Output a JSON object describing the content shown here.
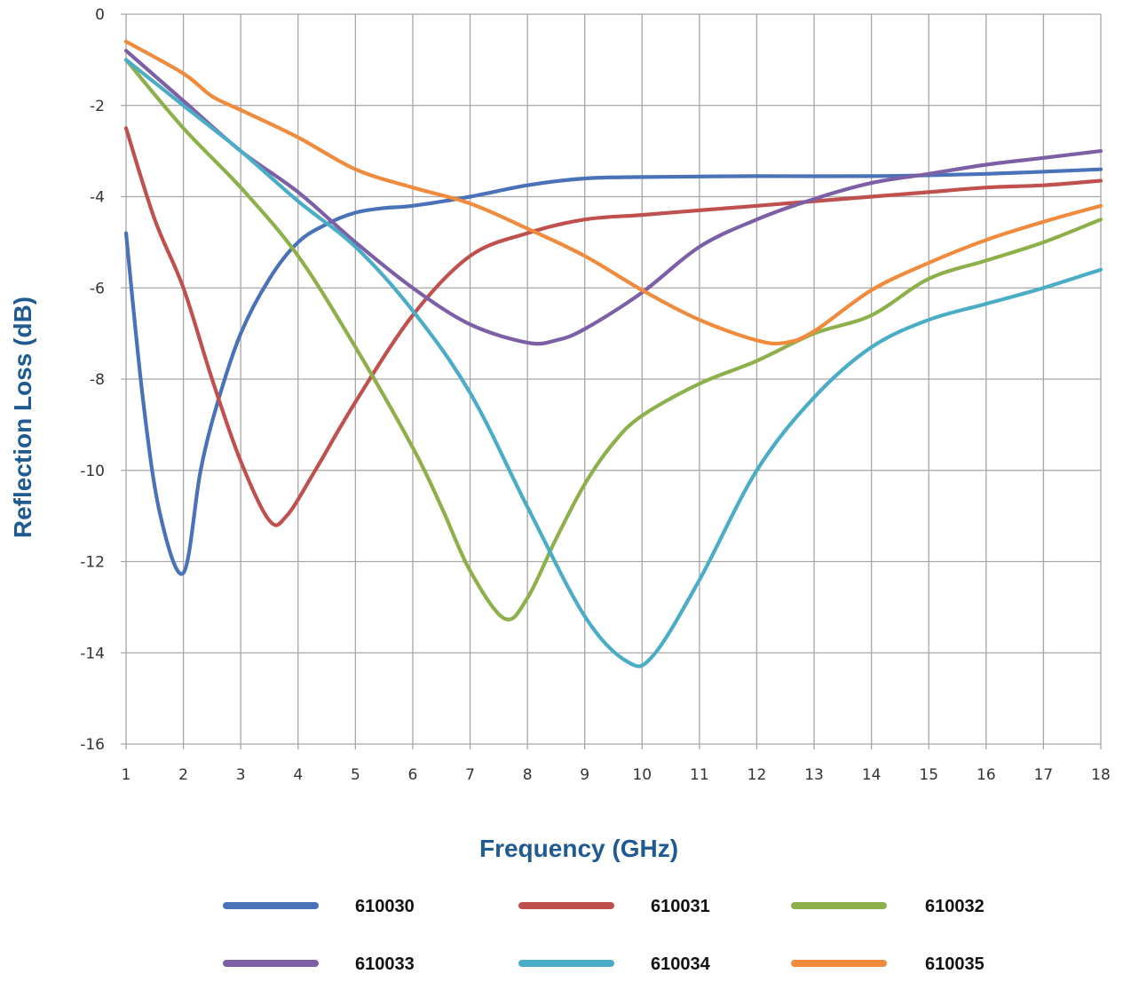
{
  "chart_data": {
    "type": "line",
    "xlabel": "Frequency (GHz)",
    "ylabel": "Reflection Loss (dB)",
    "xlim": [
      1,
      18
    ],
    "ylim": [
      -16,
      0
    ],
    "x_ticks": [
      "1",
      "2",
      "3",
      "4",
      "5",
      "6",
      "7",
      "8",
      "9",
      "10",
      "11",
      "12",
      "13",
      "14",
      "15",
      "16",
      "17",
      "18"
    ],
    "y_ticks": [
      "0",
      "-2",
      "-4",
      "-6",
      "-8",
      "-10",
      "-12",
      "-14",
      "-16"
    ],
    "grid": true,
    "legend_position": "bottom",
    "series": [
      {
        "name": "610030",
        "color": "#4a72b8",
        "points": [
          [
            1,
            -4.8
          ],
          [
            1.3,
            -8.5
          ],
          [
            1.6,
            -11.0
          ],
          [
            2.0,
            -12.25
          ],
          [
            2.3,
            -10.0
          ],
          [
            2.6,
            -8.5
          ],
          [
            3.0,
            -7.0
          ],
          [
            3.5,
            -5.8
          ],
          [
            4.0,
            -5.0
          ],
          [
            4.5,
            -4.6
          ],
          [
            5.0,
            -4.35
          ],
          [
            5.5,
            -4.25
          ],
          [
            6.0,
            -4.2
          ],
          [
            7.0,
            -4.0
          ],
          [
            8.0,
            -3.75
          ],
          [
            9.0,
            -3.6
          ],
          [
            10.0,
            -3.57
          ],
          [
            12.0,
            -3.55
          ],
          [
            14.0,
            -3.55
          ],
          [
            16.0,
            -3.5
          ],
          [
            18.0,
            -3.4
          ]
        ]
      },
      {
        "name": "610031",
        "color": "#c0504d",
        "points": [
          [
            1,
            -2.5
          ],
          [
            1.5,
            -4.5
          ],
          [
            2.0,
            -6.0
          ],
          [
            2.5,
            -8.0
          ],
          [
            3.0,
            -9.8
          ],
          [
            3.5,
            -11.1
          ],
          [
            3.8,
            -11.0
          ],
          [
            4.3,
            -10.0
          ],
          [
            5.0,
            -8.5
          ],
          [
            6.0,
            -6.6
          ],
          [
            7.0,
            -5.3
          ],
          [
            8.0,
            -4.8
          ],
          [
            9.0,
            -4.5
          ],
          [
            10.0,
            -4.4
          ],
          [
            11.0,
            -4.3
          ],
          [
            12.0,
            -4.2
          ],
          [
            13.0,
            -4.1
          ],
          [
            14.0,
            -4.0
          ],
          [
            15.0,
            -3.9
          ],
          [
            16.0,
            -3.8
          ],
          [
            17.0,
            -3.75
          ],
          [
            18.0,
            -3.65
          ]
        ]
      },
      {
        "name": "610032",
        "color": "#8db04a",
        "points": [
          [
            1,
            -1.0
          ],
          [
            2.0,
            -2.5
          ],
          [
            3.0,
            -3.8
          ],
          [
            4.0,
            -5.3
          ],
          [
            5.0,
            -7.3
          ],
          [
            6.0,
            -9.5
          ],
          [
            6.5,
            -10.8
          ],
          [
            7.0,
            -12.2
          ],
          [
            7.6,
            -13.25
          ],
          [
            8.0,
            -12.8
          ],
          [
            8.5,
            -11.5
          ],
          [
            9.0,
            -10.3
          ],
          [
            9.5,
            -9.4
          ],
          [
            10.0,
            -8.8
          ],
          [
            11.0,
            -8.1
          ],
          [
            12.0,
            -7.6
          ],
          [
            13.0,
            -7.0
          ],
          [
            14.0,
            -6.6
          ],
          [
            15.0,
            -5.8
          ],
          [
            16.0,
            -5.4
          ],
          [
            17.0,
            -5.0
          ],
          [
            18.0,
            -4.5
          ]
        ]
      },
      {
        "name": "610033",
        "color": "#7d5fa6",
        "points": [
          [
            1,
            -0.8
          ],
          [
            2.0,
            -1.9
          ],
          [
            3.0,
            -3.0
          ],
          [
            4.0,
            -3.9
          ],
          [
            5.0,
            -5.0
          ],
          [
            6.0,
            -6.0
          ],
          [
            7.0,
            -6.8
          ],
          [
            8.0,
            -7.2
          ],
          [
            8.5,
            -7.15
          ],
          [
            9.0,
            -6.9
          ],
          [
            10.0,
            -6.1
          ],
          [
            11.0,
            -5.1
          ],
          [
            12.0,
            -4.5
          ],
          [
            13.0,
            -4.05
          ],
          [
            14.0,
            -3.7
          ],
          [
            15.0,
            -3.5
          ],
          [
            16.0,
            -3.3
          ],
          [
            17.0,
            -3.15
          ],
          [
            18.0,
            -3.0
          ]
        ]
      },
      {
        "name": "610034",
        "color": "#4bacc6",
        "points": [
          [
            1,
            -1.0
          ],
          [
            2.0,
            -2.0
          ],
          [
            3.0,
            -3.0
          ],
          [
            4.0,
            -4.1
          ],
          [
            5.0,
            -5.1
          ],
          [
            6.0,
            -6.5
          ],
          [
            7.0,
            -8.3
          ],
          [
            8.0,
            -10.8
          ],
          [
            9.0,
            -13.2
          ],
          [
            9.75,
            -14.2
          ],
          [
            10.2,
            -14.05
          ],
          [
            11.0,
            -12.4
          ],
          [
            12.0,
            -10.0
          ],
          [
            13.0,
            -8.4
          ],
          [
            14.0,
            -7.3
          ],
          [
            15.0,
            -6.7
          ],
          [
            16.0,
            -6.35
          ],
          [
            17.0,
            -6.0
          ],
          [
            18.0,
            -5.6
          ]
        ]
      },
      {
        "name": "610035",
        "color": "#f08a3c",
        "points": [
          [
            1,
            -0.6
          ],
          [
            2.0,
            -1.3
          ],
          [
            2.5,
            -1.8
          ],
          [
            3.0,
            -2.1
          ],
          [
            4.0,
            -2.7
          ],
          [
            5.0,
            -3.4
          ],
          [
            6.0,
            -3.8
          ],
          [
            7.0,
            -4.15
          ],
          [
            8.0,
            -4.7
          ],
          [
            9.0,
            -5.3
          ],
          [
            10.0,
            -6.05
          ],
          [
            11.0,
            -6.7
          ],
          [
            12.0,
            -7.15
          ],
          [
            12.5,
            -7.2
          ],
          [
            13.0,
            -6.95
          ],
          [
            14.0,
            -6.05
          ],
          [
            15.0,
            -5.45
          ],
          [
            16.0,
            -4.95
          ],
          [
            17.0,
            -4.55
          ],
          [
            18.0,
            -4.2
          ]
        ]
      }
    ]
  }
}
